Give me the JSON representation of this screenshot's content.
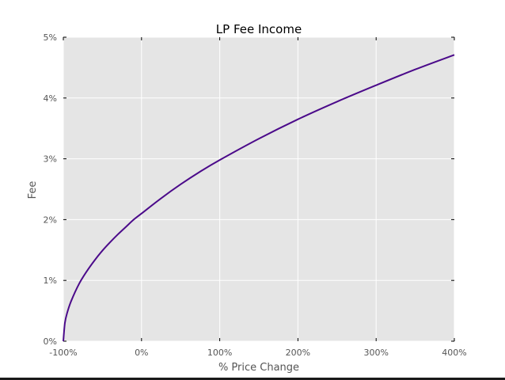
{
  "chart_data": {
    "type": "line",
    "title": "LP Fee Income",
    "xlabel": "% Price Change",
    "ylabel": "Fee",
    "xlim": [
      -100,
      400
    ],
    "ylim": [
      0,
      5
    ],
    "x_ticks": [
      -100,
      0,
      100,
      200,
      300,
      400
    ],
    "x_tick_labels": [
      "-100%",
      "0%",
      "100%",
      "200%",
      "300%",
      "400%"
    ],
    "y_ticks": [
      0,
      1,
      2,
      3,
      4,
      5
    ],
    "y_tick_labels": [
      "0%",
      "1%",
      "2%",
      "3%",
      "4%",
      "5%"
    ],
    "grid": true,
    "legend": "none",
    "colors": {
      "line": "#4b0a8a",
      "plot_background": "#e5e5e5",
      "grid": "#ffffff",
      "text": "#555555"
    },
    "series": [
      {
        "x": [
          -100,
          -98,
          -95,
          -90,
          -80,
          -70,
          -60,
          -50,
          -40,
          -30,
          -20,
          -10,
          0,
          25,
          50,
          75,
          100,
          150,
          200,
          250,
          300,
          350,
          400
        ],
        "y": [
          0,
          0.3,
          0.47,
          0.66,
          0.94,
          1.15,
          1.33,
          1.49,
          1.63,
          1.76,
          1.88,
          2.0,
          2.1,
          2.35,
          2.58,
          2.79,
          2.98,
          3.33,
          3.65,
          3.94,
          4.21,
          4.47,
          4.71
        ]
      }
    ]
  }
}
